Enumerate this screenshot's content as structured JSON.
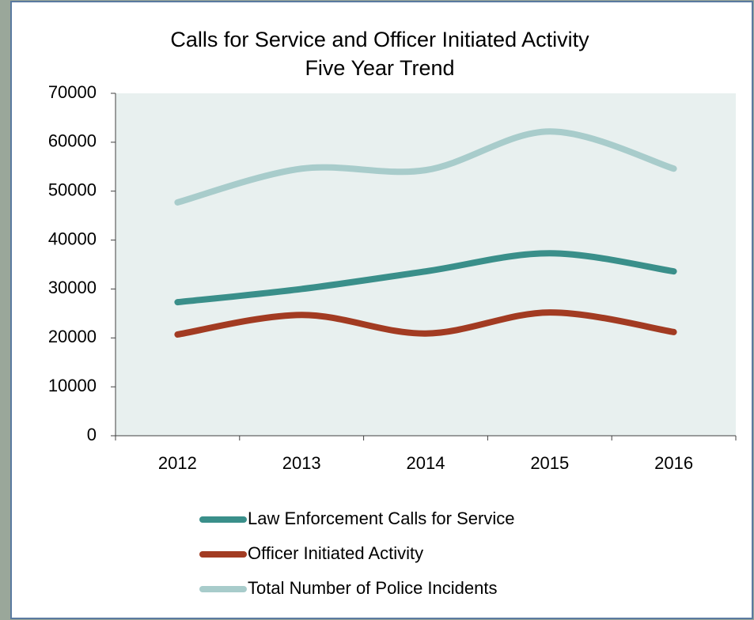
{
  "chart_data": {
    "type": "line",
    "title": [
      "Calls for Service and Officer Initiated Activity",
      "Five Year Trend"
    ],
    "categories": [
      "2012",
      "2013",
      "2014",
      "2015",
      "2016"
    ],
    "series": [
      {
        "name": "Law Enforcement Calls for Service",
        "color": "#3a8f8a",
        "values": [
          27300,
          30000,
          33600,
          37300,
          33600
        ]
      },
      {
        "name": "Officer Initiated Activity",
        "color": "#a23b22",
        "values": [
          20700,
          24700,
          20900,
          25200,
          21200
        ]
      },
      {
        "name": "Total Number of Police Incidents",
        "color": "#a8cccb",
        "values": [
          47700,
          54600,
          54300,
          62200,
          54600
        ]
      }
    ],
    "ylim": [
      0,
      70000
    ],
    "yticks": [
      0,
      10000,
      20000,
      30000,
      40000,
      50000,
      60000,
      70000
    ],
    "grid": false,
    "smooth": true,
    "legend": "bottom"
  }
}
